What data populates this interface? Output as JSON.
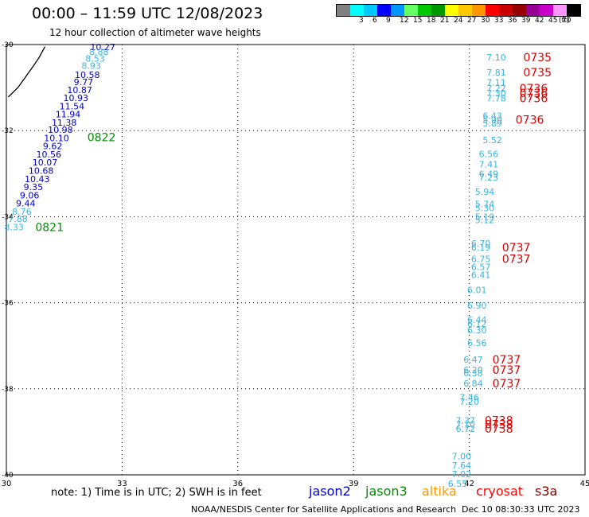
{
  "header": {
    "title": "00:00 – 11:59 UTC 12/08/2023",
    "subtitle": "12 hour collection of altimeter wave heights"
  },
  "color_scale": {
    "colors": [
      "#808080",
      "#00ffff",
      "#00c8ff",
      "#0000ff",
      "#0096ff",
      "#64ff64",
      "#00c800",
      "#009600",
      "#ffff00",
      "#ffc800",
      "#ff9600",
      "#ff0000",
      "#c80000",
      "#960000",
      "#960096",
      "#c800c8",
      "#ff96ff",
      "#000000"
    ],
    "ticks": [
      "3",
      "6",
      "9",
      "12",
      "15",
      "18",
      "21",
      "24",
      "27",
      "30",
      "33",
      "36",
      "39",
      "42",
      "45",
      "70"
    ],
    "unit": "(ft)"
  },
  "map": {
    "lon_range": [
      30,
      45
    ],
    "lat_range": [
      -40,
      -30
    ],
    "lon_ticks": [
      "30",
      "33",
      "36",
      "39",
      "42",
      "45"
    ],
    "lat_ticks": [
      "-30",
      "-32",
      "-34",
      "-36",
      "-38",
      "-40"
    ],
    "coastline_color": "#000000"
  },
  "satellites": {
    "jason2": {
      "label": "jason2",
      "color": "#0000c8"
    },
    "jason3": {
      "label": "jason3",
      "color": "#008c00"
    },
    "altika": {
      "label": "altika",
      "color": "#ff9900"
    },
    "cryosat": {
      "label": "cryosat",
      "color": "#ff0000"
    },
    "s3a": {
      "label": "s3a",
      "color": "#800000"
    }
  },
  "tracks": {
    "jason3": [
      {
        "lon": 32.5,
        "lat": -30.06,
        "v": "10.27",
        "c": "#0000c8"
      },
      {
        "lon": 32.4,
        "lat": -30.17,
        "v": "8.88",
        "c": "#3cb4dc"
      },
      {
        "lon": 32.3,
        "lat": -30.32,
        "v": "8.53",
        "c": "#3cb4dc"
      },
      {
        "lon": 32.2,
        "lat": -30.49,
        "v": "8.93",
        "c": "#3cb4dc"
      },
      {
        "lon": 32.1,
        "lat": -30.7,
        "v": "10.58",
        "c": "#0000c8"
      },
      {
        "lon": 32.0,
        "lat": -30.87,
        "v": "9.77",
        "c": "#0000c8"
      },
      {
        "lon": 31.9,
        "lat": -31.05,
        "v": "10.87",
        "c": "#0000c8"
      },
      {
        "lon": 31.8,
        "lat": -31.24,
        "v": "10.93",
        "c": "#0000c8"
      },
      {
        "lon": 31.7,
        "lat": -31.43,
        "v": "11.54",
        "c": "#0000c8"
      },
      {
        "lon": 31.6,
        "lat": -31.62,
        "v": "11.94",
        "c": "#0000c8"
      },
      {
        "lon": 31.5,
        "lat": -31.81,
        "v": "11.38",
        "c": "#0000c8"
      },
      {
        "lon": 31.4,
        "lat": -31.98,
        "v": "10.98",
        "c": "#0000c8"
      },
      {
        "lon": 31.3,
        "lat": -32.17,
        "v": "10.10",
        "c": "#0000c8"
      },
      {
        "lon": 31.2,
        "lat": -32.36,
        "v": "9.62",
        "c": "#0000c8"
      },
      {
        "lon": 31.1,
        "lat": -32.55,
        "v": "10.56",
        "c": "#0000c8"
      },
      {
        "lon": 31.0,
        "lat": -32.74,
        "v": "10.07",
        "c": "#0000c8"
      },
      {
        "lon": 30.9,
        "lat": -32.93,
        "v": "10.68",
        "c": "#0000c8"
      },
      {
        "lon": 30.8,
        "lat": -33.12,
        "v": "10.43",
        "c": "#0000c8"
      },
      {
        "lon": 30.7,
        "lat": -33.31,
        "v": "9.35",
        "c": "#0000c8"
      },
      {
        "lon": 30.6,
        "lat": -33.5,
        "v": "9.06",
        "c": "#0000c8"
      },
      {
        "lon": 30.5,
        "lat": -33.69,
        "v": "9.44",
        "c": "#0000c8"
      },
      {
        "lon": 30.4,
        "lat": -33.88,
        "v": "8.76",
        "c": "#3cb4dc"
      },
      {
        "lon": 30.3,
        "lat": -34.05,
        "v": "7.88",
        "c": "#3cb4dc"
      },
      {
        "lon": 30.2,
        "lat": -34.24,
        "v": "8.33",
        "c": "#3cb4dc"
      }
    ],
    "cryosat": [
      {
        "lon": 42.7,
        "lat": -30.3,
        "v": "7.10",
        "c": "#3cb4dc"
      },
      {
        "lon": 42.7,
        "lat": -30.65,
        "v": "7.81",
        "c": "#3cb4dc"
      },
      {
        "lon": 42.7,
        "lat": -30.88,
        "v": "7.11",
        "c": "#3cb4dc"
      },
      {
        "lon": 42.7,
        "lat": -31.02,
        "v": "7.22",
        "c": "#3cb4dc"
      },
      {
        "lon": 42.7,
        "lat": -31.13,
        "v": "7.30",
        "c": "#3cb4dc"
      },
      {
        "lon": 42.7,
        "lat": -31.25,
        "v": "7.78",
        "c": "#3cb4dc"
      },
      {
        "lon": 42.6,
        "lat": -31.65,
        "v": "6.43",
        "c": "#3cb4dc"
      },
      {
        "lon": 42.6,
        "lat": -31.75,
        "v": "5.90",
        "c": "#3cb4dc"
      },
      {
        "lon": 42.6,
        "lat": -31.83,
        "v": "5.89",
        "c": "#3cb4dc"
      },
      {
        "lon": 42.6,
        "lat": -32.22,
        "v": "5.52",
        "c": "#3cb4dc"
      },
      {
        "lon": 42.5,
        "lat": -32.54,
        "v": "6.56",
        "c": "#3cb4dc"
      },
      {
        "lon": 42.5,
        "lat": -32.78,
        "v": "7.41",
        "c": "#3cb4dc"
      },
      {
        "lon": 42.5,
        "lat": -33.0,
        "v": "6.49",
        "c": "#3cb4dc"
      },
      {
        "lon": 42.5,
        "lat": -33.09,
        "v": "7.23",
        "c": "#3cb4dc"
      },
      {
        "lon": 42.4,
        "lat": -33.42,
        "v": "5.94",
        "c": "#3cb4dc"
      },
      {
        "lon": 42.4,
        "lat": -33.71,
        "v": "5.74",
        "c": "#3cb4dc"
      },
      {
        "lon": 42.4,
        "lat": -33.8,
        "v": "5.30",
        "c": "#3cb4dc"
      },
      {
        "lon": 42.4,
        "lat": -34.0,
        "v": "5.19",
        "c": "#3cb4dc"
      },
      {
        "lon": 42.4,
        "lat": -34.08,
        "v": "5.12",
        "c": "#3cb4dc"
      },
      {
        "lon": 42.3,
        "lat": -34.62,
        "v": "6.70",
        "c": "#3cb4dc"
      },
      {
        "lon": 42.3,
        "lat": -34.71,
        "v": "6.19",
        "c": "#3cb4dc"
      },
      {
        "lon": 42.3,
        "lat": -34.98,
        "v": "6.75",
        "c": "#3cb4dc"
      },
      {
        "lon": 42.3,
        "lat": -35.17,
        "v": "6.57",
        "c": "#3cb4dc"
      },
      {
        "lon": 42.3,
        "lat": -35.35,
        "v": "6.41",
        "c": "#3cb4dc"
      },
      {
        "lon": 42.2,
        "lat": -35.7,
        "v": "6.01",
        "c": "#3cb4dc"
      },
      {
        "lon": 42.2,
        "lat": -36.06,
        "v": "6.90",
        "c": "#3cb4dc"
      },
      {
        "lon": 42.2,
        "lat": -36.4,
        "v": "6.44",
        "c": "#3cb4dc"
      },
      {
        "lon": 42.2,
        "lat": -36.49,
        "v": "6.12",
        "c": "#3cb4dc"
      },
      {
        "lon": 42.2,
        "lat": -36.64,
        "v": "6.30",
        "c": "#3cb4dc"
      },
      {
        "lon": 42.2,
        "lat": -36.93,
        "v": "6.56",
        "c": "#3cb4dc"
      },
      {
        "lon": 42.1,
        "lat": -37.32,
        "v": "6.47",
        "c": "#3cb4dc"
      },
      {
        "lon": 42.1,
        "lat": -37.56,
        "v": "6.20",
        "c": "#3cb4dc"
      },
      {
        "lon": 42.1,
        "lat": -37.63,
        "v": "6.38",
        "c": "#3cb4dc"
      },
      {
        "lon": 42.1,
        "lat": -37.87,
        "v": "6.84",
        "c": "#3cb4dc"
      },
      {
        "lon": 42.0,
        "lat": -38.2,
        "v": "7.46",
        "c": "#3cb4dc"
      },
      {
        "lon": 42.0,
        "lat": -38.3,
        "v": "7.20",
        "c": "#3cb4dc"
      },
      {
        "lon": 41.9,
        "lat": -38.73,
        "v": "7.37",
        "c": "#3cb4dc"
      },
      {
        "lon": 41.9,
        "lat": -38.83,
        "v": "7.10",
        "c": "#3cb4dc"
      },
      {
        "lon": 41.9,
        "lat": -38.93,
        "v": "6.72",
        "c": "#3cb4dc"
      },
      {
        "lon": 41.8,
        "lat": -39.57,
        "v": "7.00",
        "c": "#3cb4dc"
      },
      {
        "lon": 41.8,
        "lat": -39.78,
        "v": "7.64",
        "c": "#3cb4dc"
      },
      {
        "lon": 41.8,
        "lat": -39.98,
        "v": "7.02",
        "c": "#3cb4dc"
      },
      {
        "lon": 41.7,
        "lat": -40.2,
        "v": "6.55",
        "c": "#3cb4dc"
      }
    ]
  },
  "time_labels": [
    {
      "lon": 32.1,
      "lat": -32.15,
      "t": "0822",
      "c": "#008c00"
    },
    {
      "lon": 30.75,
      "lat": -34.24,
      "t": "0821",
      "c": "#008c00"
    },
    {
      "lon": 43.4,
      "lat": -30.3,
      "t": "0735",
      "c": "#dc0000"
    },
    {
      "lon": 43.4,
      "lat": -30.65,
      "t": "0735",
      "c": "#dc0000"
    },
    {
      "lon": 43.3,
      "lat": -31.02,
      "t": "0736",
      "c": "#dc0000"
    },
    {
      "lon": 43.3,
      "lat": -31.13,
      "t": "0736",
      "c": "#dc0000"
    },
    {
      "lon": 43.3,
      "lat": -31.25,
      "t": "0736",
      "c": "#dc0000"
    },
    {
      "lon": 43.2,
      "lat": -31.75,
      "t": "0736",
      "c": "#dc0000"
    },
    {
      "lon": 42.85,
      "lat": -34.71,
      "t": "0737",
      "c": "#dc0000"
    },
    {
      "lon": 42.85,
      "lat": -34.98,
      "t": "0737",
      "c": "#dc0000"
    },
    {
      "lon": 42.6,
      "lat": -37.32,
      "t": "0737",
      "c": "#dc0000"
    },
    {
      "lon": 42.6,
      "lat": -37.56,
      "t": "0737",
      "c": "#dc0000"
    },
    {
      "lon": 42.6,
      "lat": -37.87,
      "t": "0737",
      "c": "#dc0000"
    },
    {
      "lon": 42.4,
      "lat": -38.73,
      "t": "0738",
      "c": "#dc0000"
    },
    {
      "lon": 42.4,
      "lat": -38.83,
      "t": "0738",
      "c": "#dc0000"
    },
    {
      "lon": 42.4,
      "lat": -38.93,
      "t": "0738",
      "c": "#dc0000"
    }
  ],
  "coastline": [
    {
      "lon": 30.05,
      "lat": -31.22
    },
    {
      "lon": 30.3,
      "lat": -31.0
    },
    {
      "lon": 30.5,
      "lat": -30.75
    },
    {
      "lon": 30.7,
      "lat": -30.5
    },
    {
      "lon": 30.85,
      "lat": -30.3
    },
    {
      "lon": 31.0,
      "lat": -30.05
    }
  ],
  "note": "note:  1) Time is in UTC; 2) SWH is in feet",
  "footer": {
    "left": "NOAA/NESDIS Center for Satellite Applications and Research",
    "right": "Dec 10 08:30:33 UTC 2023"
  }
}
